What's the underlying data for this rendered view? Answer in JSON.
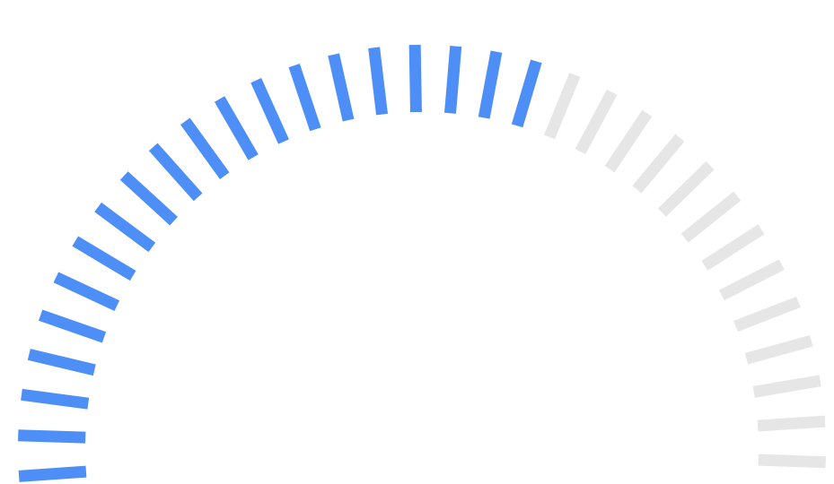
{
  "chart_data": {
    "type": "gauge",
    "value": 0.61,
    "segments_total": 33,
    "segments_filled": 20,
    "colors": {
      "filled": "#4d8ef7",
      "unfilled": "#e6e6e6",
      "background": "#ffffff"
    },
    "legend": "none",
    "grid": false
  }
}
